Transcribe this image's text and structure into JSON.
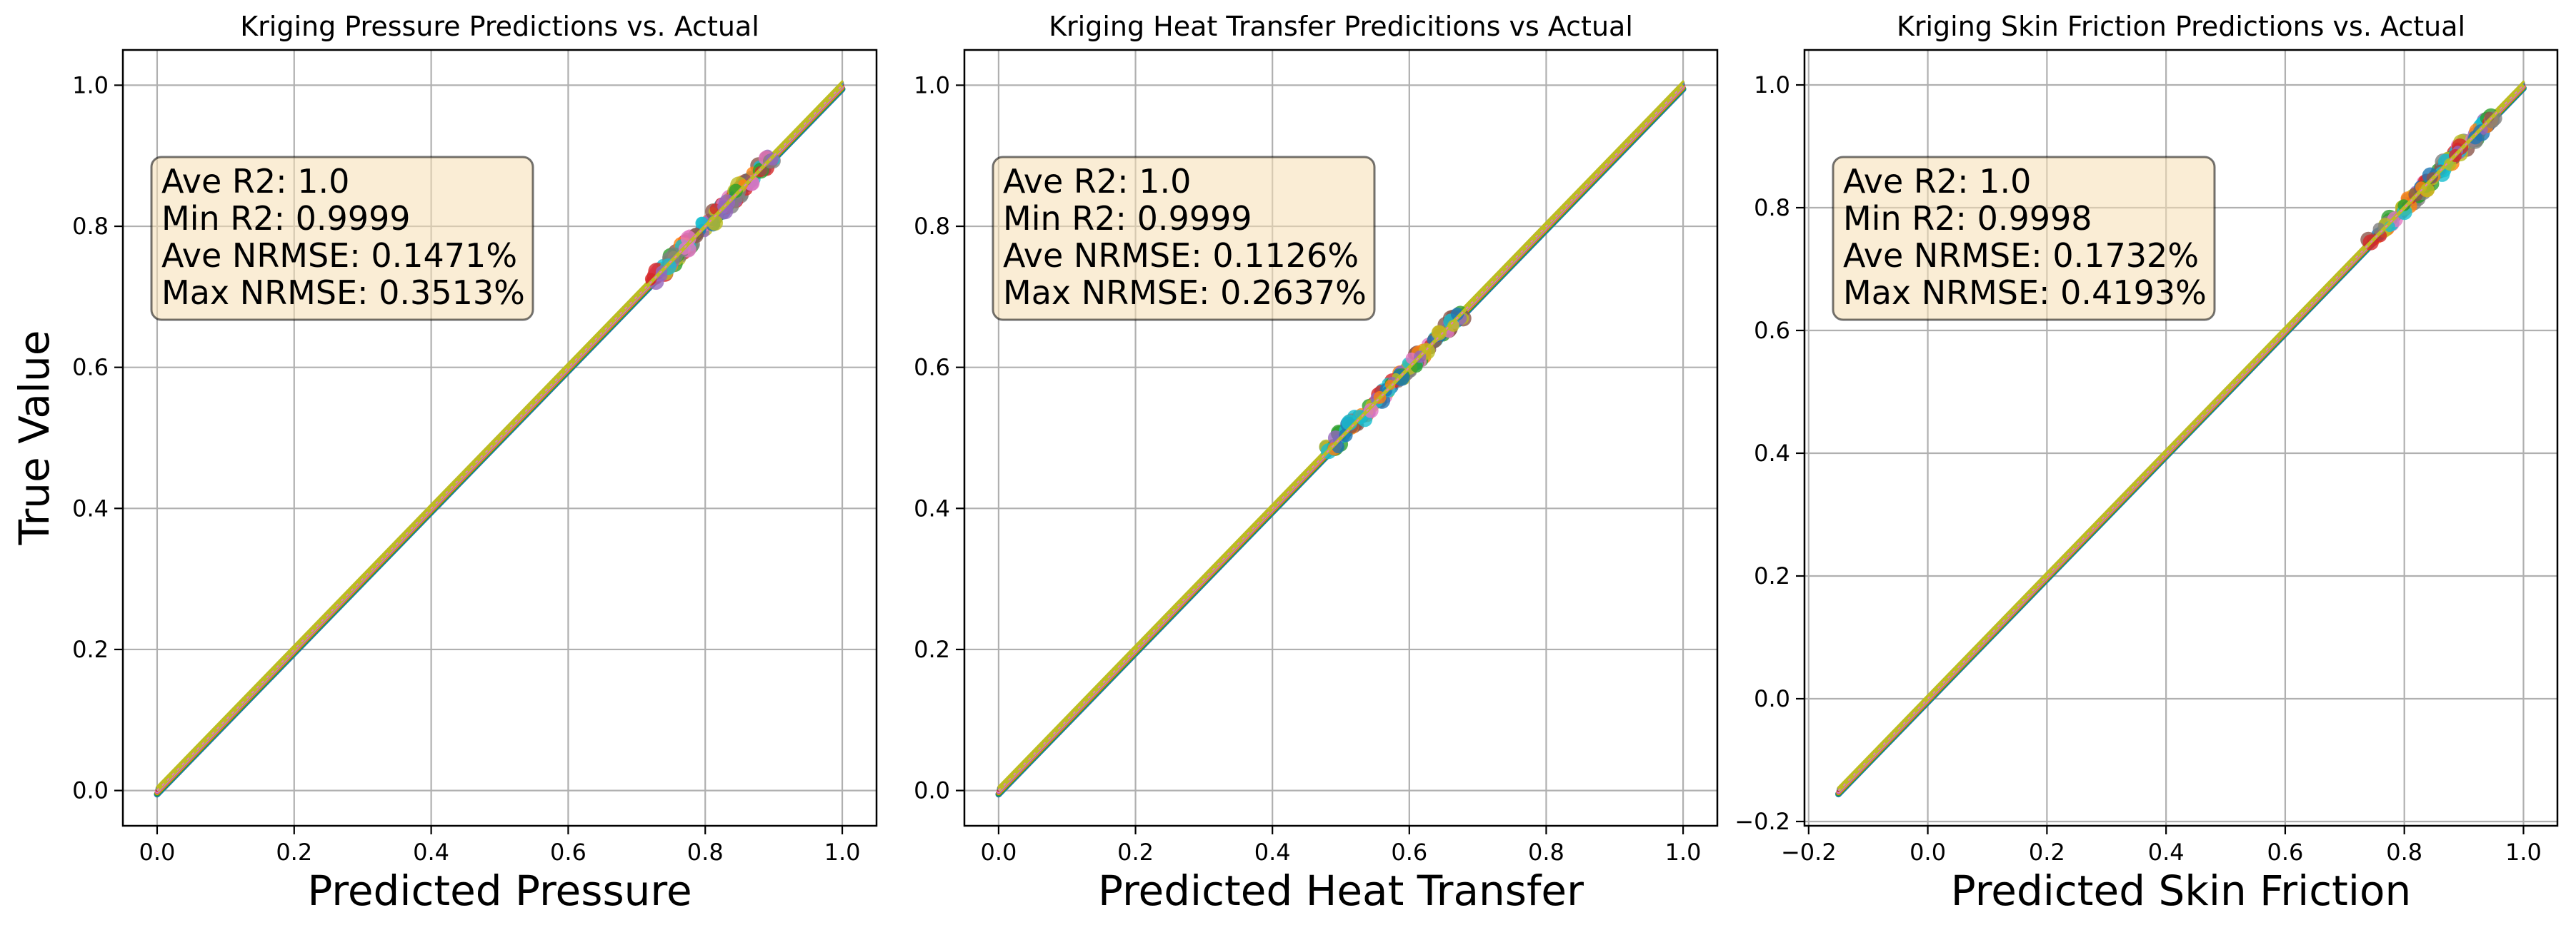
{
  "figure": {
    "ylabel": "True Value"
  },
  "style": {
    "grid_color": "#b0b0b0",
    "axis_color": "#000000",
    "stats_box_fill": "#f5deb3",
    "stats_box_edge": "#000000",
    "series_colors": [
      "#1f77b4",
      "#ff7f0e",
      "#2ca02c",
      "#d62728",
      "#9467bd",
      "#8c564b",
      "#e377c2",
      "#7f7f7f",
      "#bcbd22",
      "#17becf"
    ]
  },
  "chart_data": [
    {
      "type": "line",
      "title": "Kriging Pressure Predictions vs. Actual",
      "xlabel": "Predicted Pressure",
      "ylabel": "True Value",
      "xlim": [
        -0.05,
        1.05
      ],
      "ylim": [
        -0.05,
        1.05
      ],
      "xticks": [
        0.0,
        0.2,
        0.4,
        0.6,
        0.8,
        1.0
      ],
      "yticks": [
        0.0,
        0.2,
        0.4,
        0.6,
        0.8,
        1.0
      ],
      "xtick_labels": [
        "0.0",
        "0.2",
        "0.4",
        "0.6",
        "0.8",
        "1.0"
      ],
      "ytick_labels": [
        "0.0",
        "0.2",
        "0.4",
        "0.6",
        "0.8",
        "1.0"
      ],
      "grid": true,
      "legend": "none",
      "stats_box_location": "upper-left",
      "stats": [
        "Ave R2: 1.0",
        "Min R2: 0.9999",
        "Ave NRMSE: 0.1471%",
        "Max NRMSE: 0.3513%"
      ],
      "series": [
        {
          "x": [
            0.0,
            1.0
          ],
          "y": [
            0.0,
            1.0
          ]
        }
      ],
      "scatter_cluster": [
        0.72,
        0.9
      ]
    },
    {
      "type": "line",
      "title": "Kriging Heat Transfer Predicitions vs Actual",
      "xlabel": "Predicted Heat Transfer",
      "ylabel": "",
      "xlim": [
        -0.05,
        1.05
      ],
      "ylim": [
        -0.05,
        1.05
      ],
      "xticks": [
        0.0,
        0.2,
        0.4,
        0.6,
        0.8,
        1.0
      ],
      "yticks": [
        0.0,
        0.2,
        0.4,
        0.6,
        0.8,
        1.0
      ],
      "xtick_labels": [
        "0.0",
        "0.2",
        "0.4",
        "0.6",
        "0.8",
        "1.0"
      ],
      "ytick_labels": [
        "0.0",
        "0.2",
        "0.4",
        "0.6",
        "0.8",
        "1.0"
      ],
      "grid": true,
      "legend": "none",
      "stats_box_location": "upper-left",
      "stats": [
        "Ave R2: 1.0",
        "Min R2: 0.9999",
        "Ave NRMSE: 0.1126%",
        "Max NRMSE: 0.2637%"
      ],
      "series": [
        {
          "x": [
            0.0,
            1.0
          ],
          "y": [
            0.0,
            1.0
          ]
        }
      ],
      "scatter_cluster": [
        0.48,
        0.68
      ]
    },
    {
      "type": "line",
      "title": "Kriging Skin Friction Predictions vs. Actual",
      "xlabel": "Predicted Skin Friction",
      "ylabel": "",
      "xlim": [
        -0.207,
        1.057
      ],
      "ylim": [
        -0.207,
        1.057
      ],
      "xticks": [
        -0.2,
        0.0,
        0.2,
        0.4,
        0.6,
        0.8,
        1.0
      ],
      "yticks": [
        -0.2,
        0.0,
        0.2,
        0.4,
        0.6,
        0.8,
        1.0
      ],
      "xtick_labels": [
        "−0.2",
        "0.0",
        "0.2",
        "0.4",
        "0.6",
        "0.8",
        "1.0"
      ],
      "ytick_labels": [
        "−0.2",
        "0.0",
        "0.2",
        "0.4",
        "0.6",
        "0.8",
        "1.0"
      ],
      "grid": true,
      "legend": "none",
      "stats_box_location": "upper-left",
      "stats": [
        "Ave R2: 1.0",
        "Min R2: 0.9998",
        "Ave NRMSE: 0.1732%",
        "Max NRMSE: 0.4193%"
      ],
      "series": [
        {
          "x": [
            -0.15,
            1.0
          ],
          "y": [
            -0.15,
            1.0
          ]
        }
      ],
      "scatter_cluster": [
        0.74,
        0.95
      ]
    }
  ]
}
